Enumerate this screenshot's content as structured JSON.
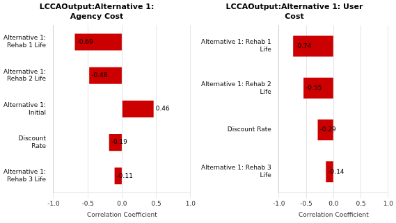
{
  "chart_data": [
    {
      "type": "bar",
      "orientation": "horizontal",
      "title": "LCCAOutput:Alternative 1:\nAgency Cost",
      "categories": [
        "Alternative 1:\nRehab 1 Life",
        "Alternative 1:\nRehab 2 Life",
        "Alternative 1:\nInitial",
        "Discount\nRate",
        "Alternative 1:\nRehab 3 Life"
      ],
      "values": [
        -0.69,
        -0.48,
        0.46,
        -0.19,
        -0.11
      ],
      "color": "#cc0000",
      "xlabel": "Correlation Coefficient",
      "xlim": [
        -1.0,
        1.0
      ],
      "xticks": [
        {
          "value": -1.0,
          "label": "-1.0"
        },
        {
          "value": -0.5,
          "label": "-0.5"
        },
        {
          "value": 0.0,
          "label": "0.0"
        },
        {
          "value": 0.5,
          "label": "0.5"
        },
        {
          "value": 1.0,
          "label": "1.0"
        }
      ],
      "data_labels": true,
      "grid": true
    },
    {
      "type": "bar",
      "orientation": "horizontal",
      "title": "LCCAOutput:Alternative 1: User\nCost",
      "categories": [
        "Alternative 1: Rehab 1\nLife",
        "Alternative 1: Rehab 2\nLife",
        "Discount Rate",
        "Alternative 1: Rehab 3\nLife"
      ],
      "values": [
        -0.74,
        -0.55,
        -0.29,
        -0.14
      ],
      "color": "#cc0000",
      "xlabel": "Correlation Coefficient",
      "xlim": [
        -1.0,
        1.0
      ],
      "xticks": [
        {
          "value": -1.0,
          "label": "-1.0"
        },
        {
          "value": -0.5,
          "label": "-0.5"
        },
        {
          "value": 0.0,
          "label": "0.0"
        },
        {
          "value": 0.5,
          "label": "0.5"
        },
        {
          "value": 1.0,
          "label": "1.0"
        }
      ],
      "data_labels": true,
      "grid": true
    }
  ]
}
